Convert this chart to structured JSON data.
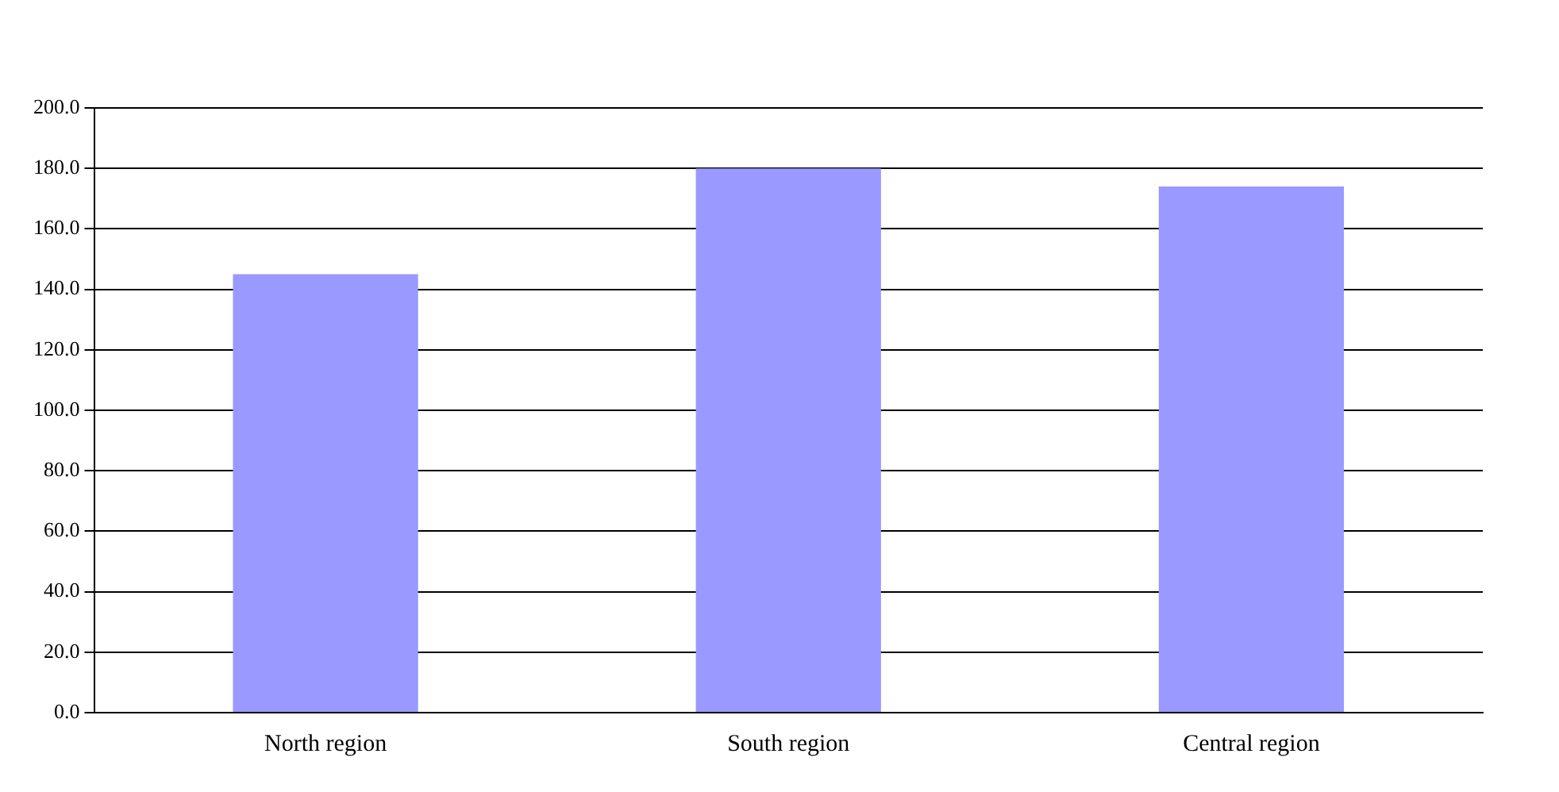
{
  "chart_data": {
    "type": "bar",
    "categories": [
      "North region",
      "South region",
      "Central region"
    ],
    "values": [
      145,
      180,
      174
    ],
    "color": "#9999ff",
    "ylim": [
      0,
      200
    ],
    "yticks": [
      {
        "value": 0,
        "label": "0.0"
      },
      {
        "value": 20,
        "label": "20.0"
      },
      {
        "value": 40,
        "label": "40.0"
      },
      {
        "value": 60,
        "label": "60.0"
      },
      {
        "value": 80,
        "label": "80.0"
      },
      {
        "value": 100,
        "label": "100.0"
      },
      {
        "value": 120,
        "label": "120.0"
      },
      {
        "value": 140,
        "label": "140.0"
      },
      {
        "value": 160,
        "label": "160.0"
      },
      {
        "value": 180,
        "label": "180.0"
      },
      {
        "value": 200,
        "label": "200.0"
      }
    ],
    "grid": "y",
    "legend": false
  }
}
